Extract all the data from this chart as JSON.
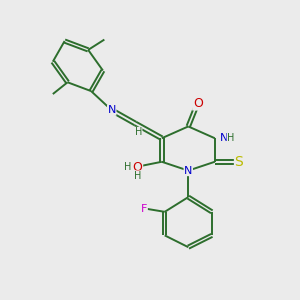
{
  "background_color": "#ebebeb",
  "bond_color": "#2d6e2d",
  "atom_colors": {
    "N": "#0000cc",
    "O": "#cc0000",
    "S": "#bbbb00",
    "F": "#cc00cc",
    "C": "#2d6e2d",
    "H": "#2d6e2d"
  },
  "font_size": 8,
  "line_width": 1.4
}
